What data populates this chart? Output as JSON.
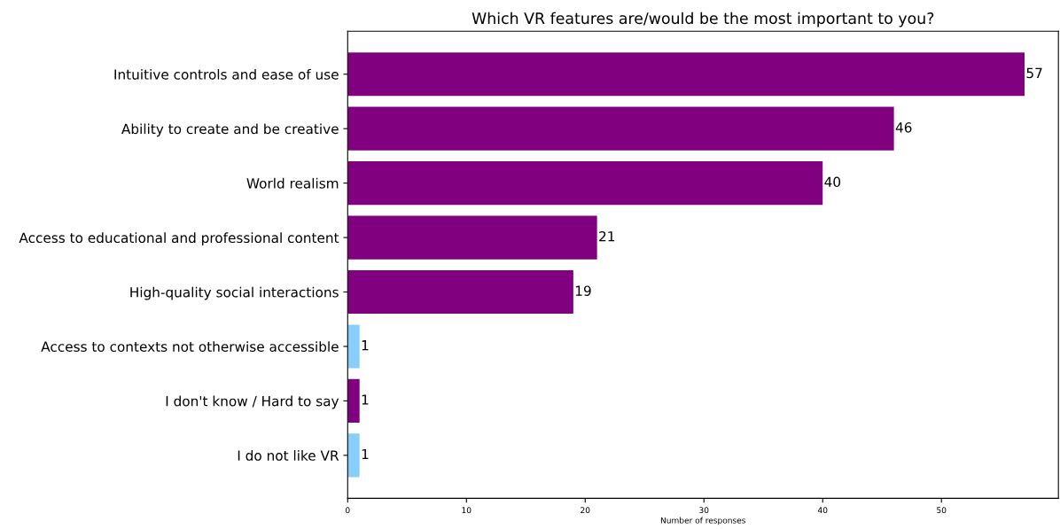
{
  "chart_data": {
    "type": "bar",
    "orientation": "horizontal",
    "title": "Which VR features are/would be the most important to you?",
    "xlabel": "Number of responses",
    "categories": [
      "Intuitive controls and ease of use",
      "Ability to create and be creative",
      "World realism",
      "Access to educational and professional content",
      "High-quality social interactions",
      "Access to contexts not otherwise accessible",
      "I don't know / Hard to say",
      "I do not like VR"
    ],
    "values": [
      57,
      46,
      40,
      21,
      19,
      1,
      1,
      1
    ],
    "colors": [
      "#800080",
      "#800080",
      "#800080",
      "#800080",
      "#800080",
      "#87cefa",
      "#800080",
      "#87cefa"
    ],
    "xlim": [
      0,
      59.85
    ],
    "xticks": [
      0,
      10,
      20,
      30,
      40,
      50
    ],
    "data_labels": true,
    "grid": false
  }
}
